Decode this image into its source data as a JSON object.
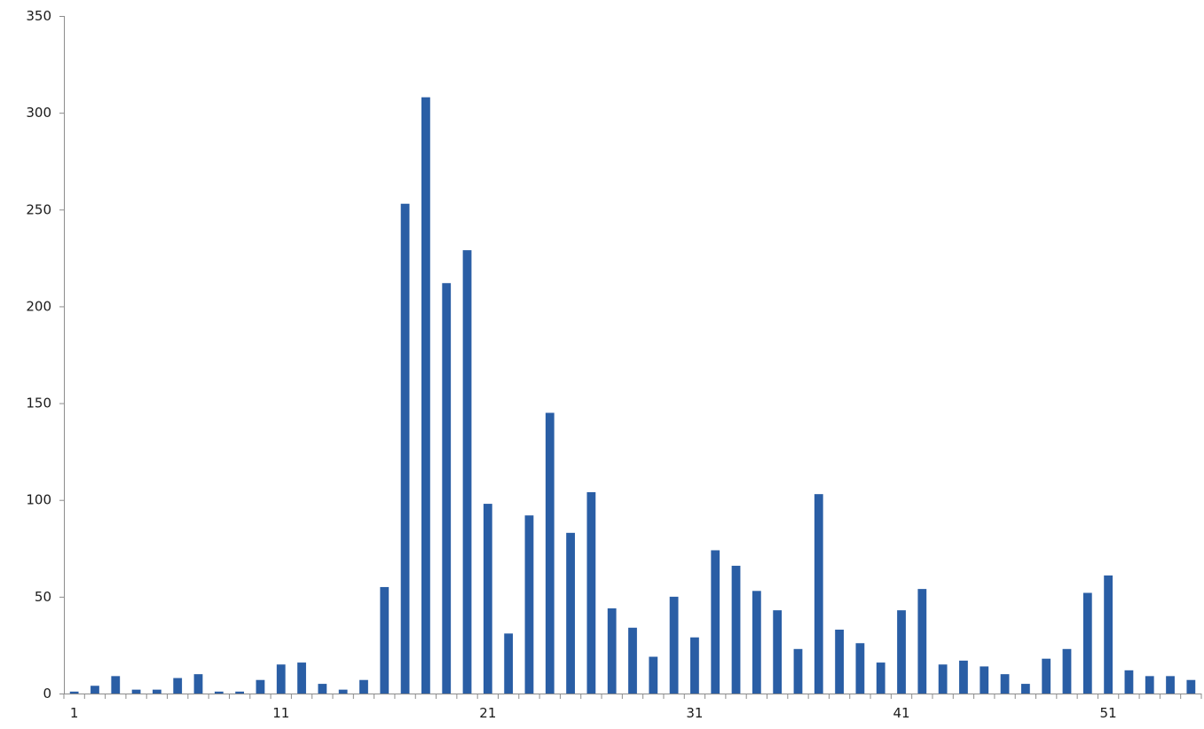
{
  "chart_data": {
    "type": "bar",
    "title": "",
    "xlabel": "",
    "ylabel": "",
    "ylim": [
      0,
      350
    ],
    "yticks": [
      0,
      50,
      100,
      150,
      200,
      250,
      300,
      350
    ],
    "xtick_labels": [
      "1",
      "11",
      "21",
      "31",
      "41",
      "51"
    ],
    "grid": false,
    "legend": "none",
    "bar_color": "#2a5ea5",
    "categories": [
      1,
      2,
      3,
      4,
      5,
      6,
      7,
      8,
      9,
      10,
      11,
      12,
      13,
      14,
      15,
      16,
      17,
      18,
      19,
      20,
      21,
      22,
      23,
      24,
      25,
      26,
      27,
      28,
      29,
      30,
      31,
      32,
      33,
      34,
      35,
      36,
      37,
      38,
      39,
      40,
      41,
      42,
      43,
      44,
      45,
      46,
      47,
      48,
      49,
      50,
      51,
      52,
      53,
      54,
      55
    ],
    "values": [
      1,
      4,
      9,
      2,
      2,
      8,
      10,
      1,
      1,
      7,
      15,
      16,
      5,
      2,
      7,
      55,
      253,
      308,
      212,
      229,
      98,
      31,
      92,
      145,
      83,
      104,
      44,
      34,
      19,
      50,
      29,
      74,
      66,
      53,
      43,
      23,
      103,
      33,
      26,
      16,
      43,
      54,
      15,
      17,
      14,
      10,
      5,
      18,
      23,
      52,
      61,
      12,
      9,
      9,
      7
    ]
  }
}
